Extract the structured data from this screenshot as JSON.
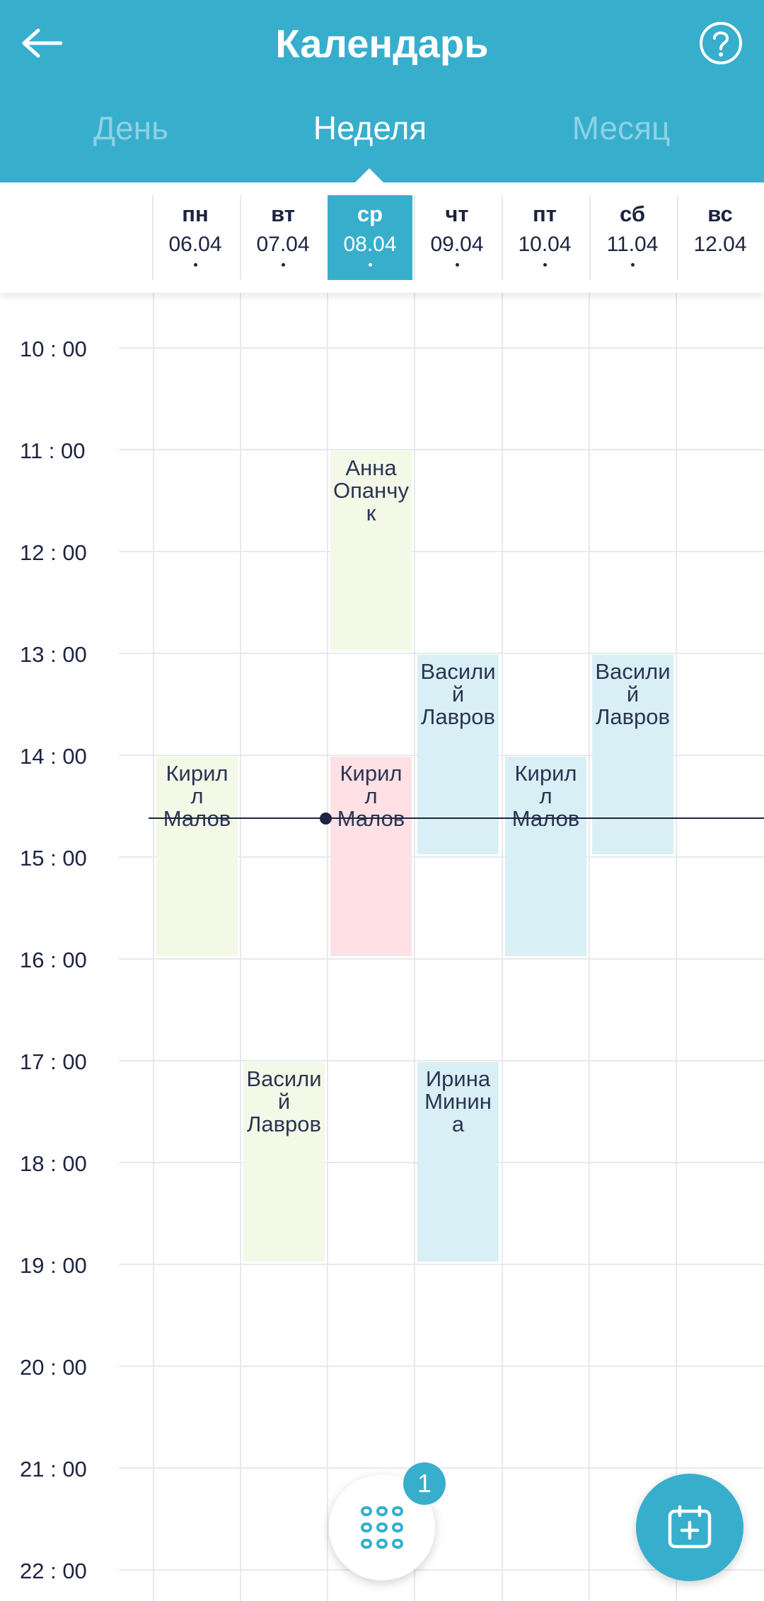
{
  "header": {
    "title": "Календарь",
    "back_icon": "arrow-left-icon",
    "help_icon": "question-circle-icon"
  },
  "tabs": [
    {
      "label": "День",
      "active": false
    },
    {
      "label": "Неделя",
      "active": true
    },
    {
      "label": "Месяц",
      "active": false
    }
  ],
  "days": [
    {
      "name": "пн",
      "date": "06.04",
      "has_events": true,
      "today": false
    },
    {
      "name": "вт",
      "date": "07.04",
      "has_events": true,
      "today": false
    },
    {
      "name": "ср",
      "date": "08.04",
      "has_events": true,
      "today": true
    },
    {
      "name": "чт",
      "date": "09.04",
      "has_events": true,
      "today": false
    },
    {
      "name": "пт",
      "date": "10.04",
      "has_events": true,
      "today": false
    },
    {
      "name": "сб",
      "date": "11.04",
      "has_events": true,
      "today": false
    },
    {
      "name": "вс",
      "date": "12.04",
      "has_events": false,
      "today": false
    }
  ],
  "times": [
    "10 : 00",
    "11 : 00",
    "12 : 00",
    "13 : 00",
    "14 : 00",
    "15 : 00",
    "16 : 00",
    "17 : 00",
    "18 : 00",
    "19 : 00",
    "20 : 00",
    "21 : 00",
    "22 : 00"
  ],
  "events": [
    {
      "day": 2,
      "start": "11:00",
      "end": "13:00",
      "name": "Анна Опанчук",
      "lines": [
        "Анна",
        "Опанчу",
        "к"
      ],
      "color": "green"
    },
    {
      "day": 3,
      "start": "13:00",
      "end": "15:00",
      "name": "Василий Лавров",
      "lines": [
        "Васили",
        "й",
        "Лавров"
      ],
      "color": "blue"
    },
    {
      "day": 5,
      "start": "13:00",
      "end": "15:00",
      "name": "Василий Лавров",
      "lines": [
        "Васили",
        "й",
        "Лавров"
      ],
      "color": "blue"
    },
    {
      "day": 0,
      "start": "14:00",
      "end": "16:00",
      "name": "Кирилл Малов",
      "lines": [
        "Кирил",
        "л",
        "Малов"
      ],
      "color": "green"
    },
    {
      "day": 2,
      "start": "14:00",
      "end": "16:00",
      "name": "Кирилл Малов",
      "lines": [
        "Кирил",
        "л",
        "Малов"
      ],
      "color": "pink"
    },
    {
      "day": 4,
      "start": "14:00",
      "end": "16:00",
      "name": "Кирилл Малов",
      "lines": [
        "Кирил",
        "л",
        "Малов"
      ],
      "color": "blue"
    },
    {
      "day": 1,
      "start": "17:00",
      "end": "19:00",
      "name": "Василий Лавров",
      "lines": [
        "Васили",
        "й",
        "Лавров"
      ],
      "color": "green"
    },
    {
      "day": 3,
      "start": "17:00",
      "end": "19:00",
      "name": "Ирина Минина",
      "lines": [
        "Ирина",
        "Минин",
        "а"
      ],
      "color": "blue"
    }
  ],
  "current_time": "14:37",
  "fab": {
    "grid_icon": "grid-dots-icon",
    "badge_count": "1",
    "add_icon": "calendar-plus-icon"
  },
  "colors": {
    "accent": "#38aecd",
    "event_green": "#f3f8e7",
    "event_blue": "#d9eff6",
    "event_pink": "#ffe0e5",
    "text": "#1d2340"
  }
}
